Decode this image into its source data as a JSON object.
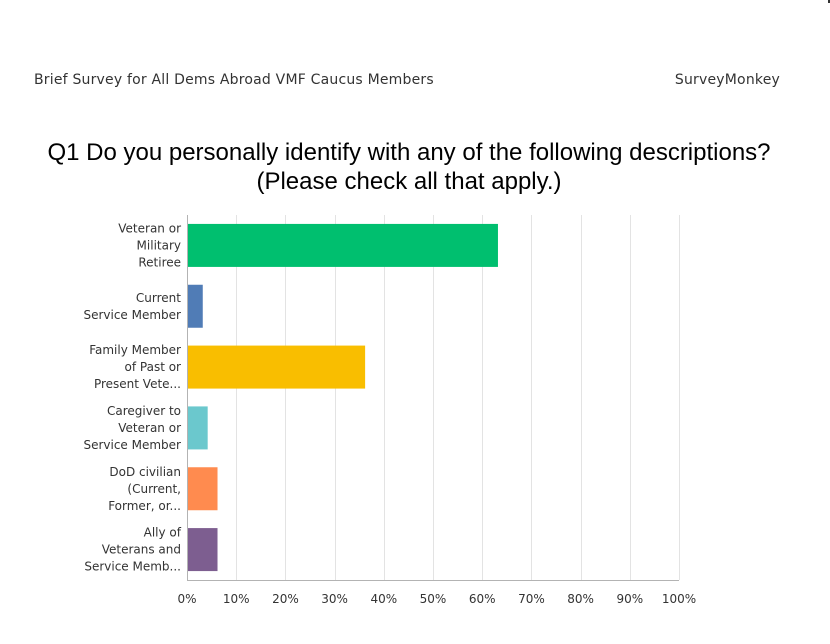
{
  "header": {
    "survey_title": "Brief Survey for All Dems Abroad VMF Caucus Members",
    "brand": "SurveyMonkey"
  },
  "question": {
    "line1": "Q1 Do you personally identify with any of the following descriptions?",
    "line2": "(Please check all that apply.)"
  },
  "chart_data": {
    "type": "bar",
    "orientation": "horizontal",
    "categories": [
      [
        "Veteran or",
        "Military",
        "Retiree"
      ],
      [
        "Current",
        "Service Member"
      ],
      [
        "Family Member",
        "of Past or",
        "Present Vete..."
      ],
      [
        "Caregiver to",
        "Veteran or",
        "Service Member"
      ],
      [
        "DoD civilian",
        "(Current,",
        "Former, or..."
      ],
      [
        "Ally of",
        "Veterans and",
        "Service Memb..."
      ]
    ],
    "values": [
      63,
      3,
      36,
      4,
      6,
      6
    ],
    "colors": [
      "#00bf6f",
      "#507cb6",
      "#f9be00",
      "#6bc8cd",
      "#ff8b4f",
      "#7d5e90"
    ],
    "xlim": [
      0,
      100
    ],
    "xticks": [
      "0%",
      "10%",
      "20%",
      "30%",
      "40%",
      "50%",
      "60%",
      "70%",
      "80%",
      "90%",
      "100%"
    ],
    "grid": true,
    "title": "",
    "xlabel": "",
    "ylabel": ""
  }
}
